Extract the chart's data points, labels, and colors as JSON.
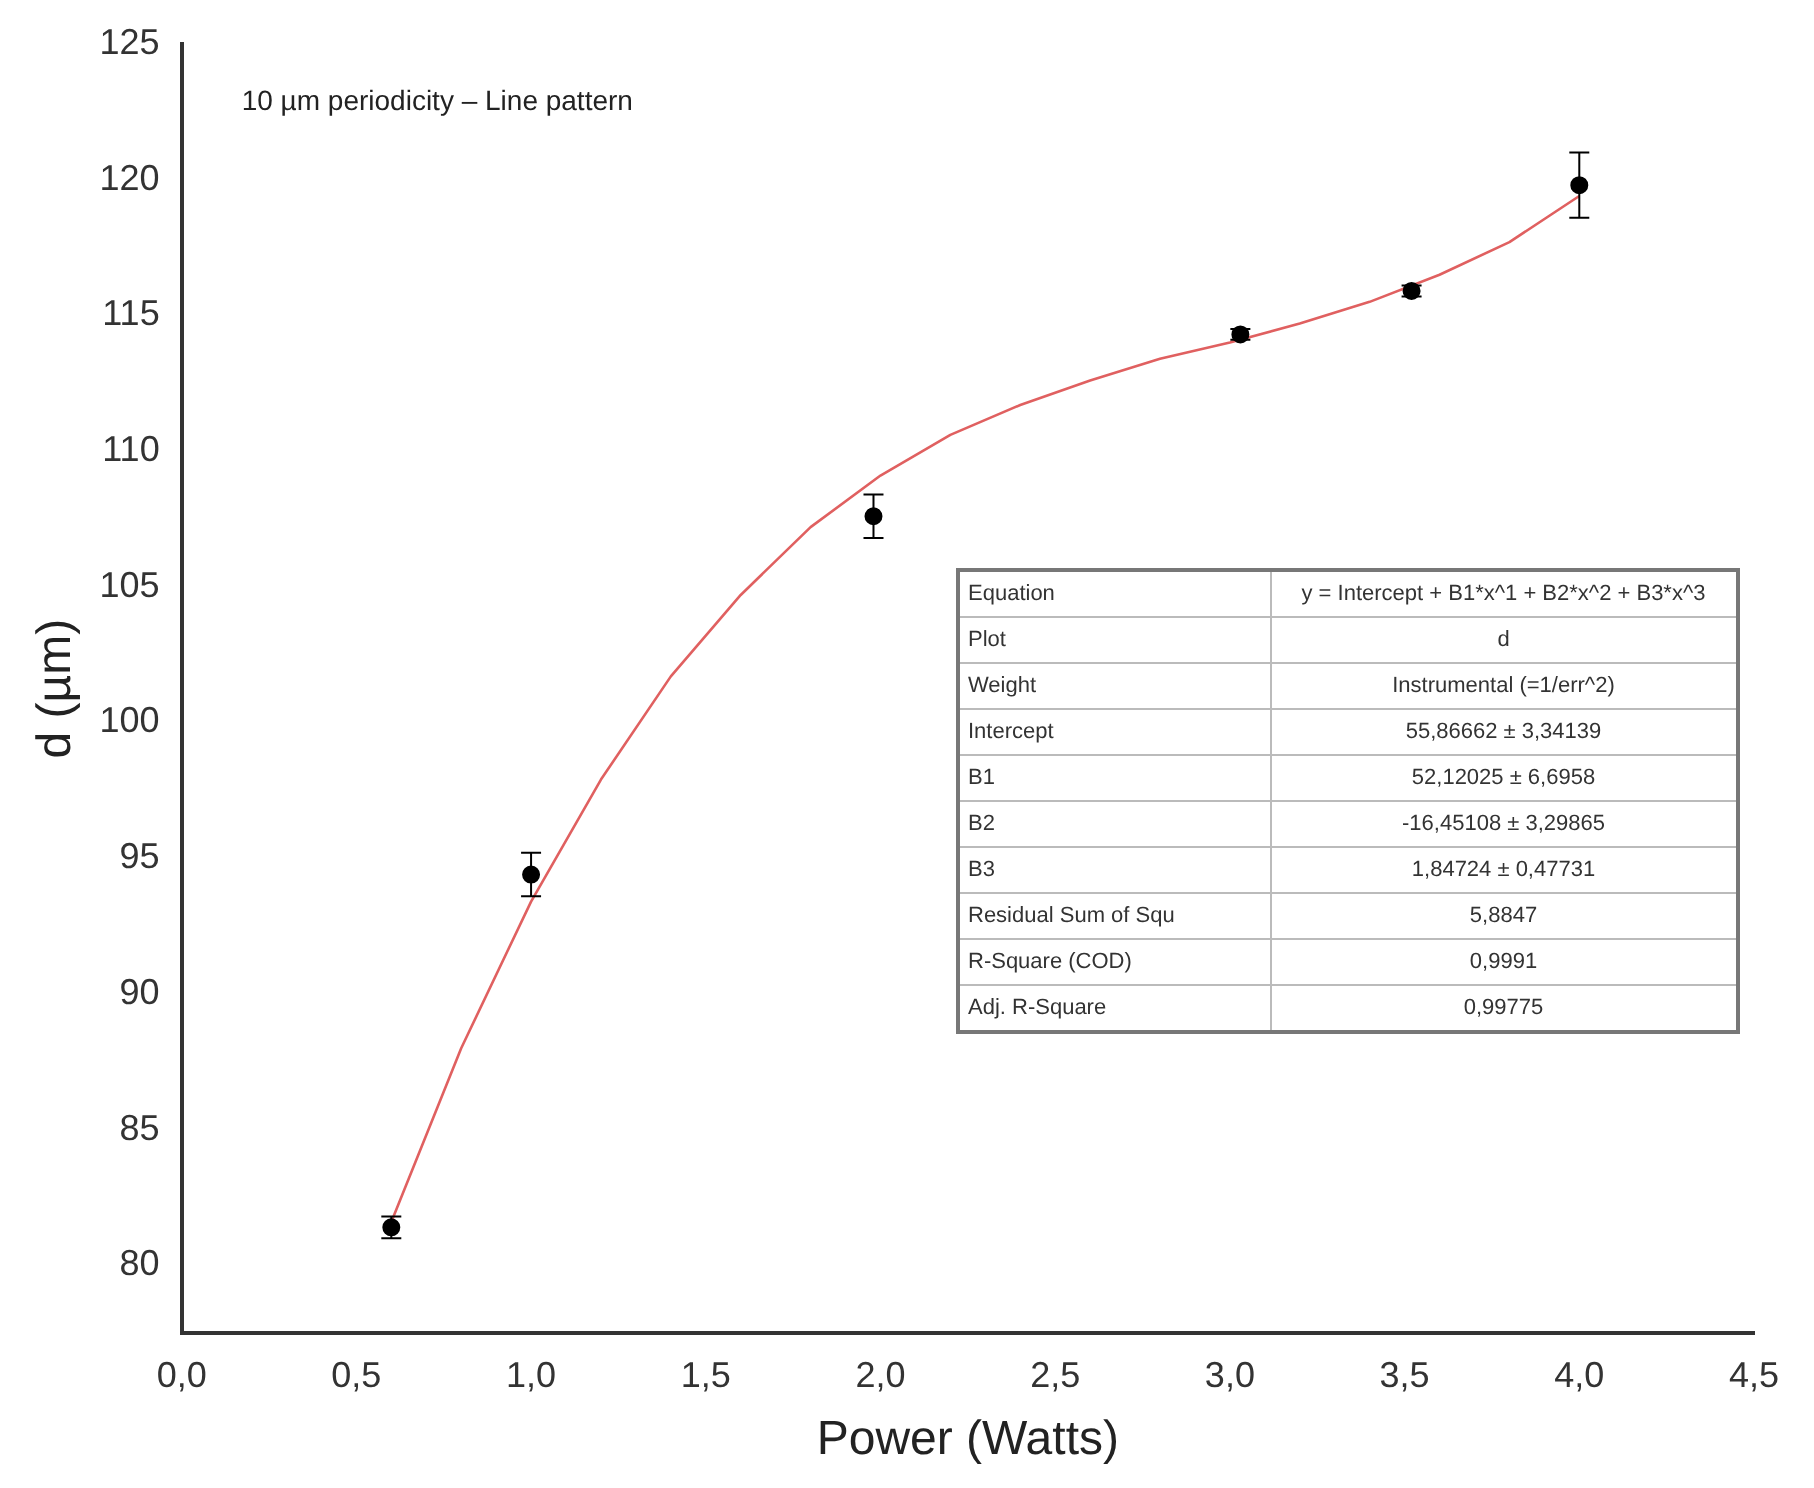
{
  "chart_data": {
    "type": "scatter",
    "title": "10 µm periodicity – Line pattern",
    "xlabel": "Power (Watts)",
    "ylabel": "d (µm)",
    "xlim": [
      0,
      4.5
    ],
    "xticks": [
      {
        "value": 0,
        "label": "0,0"
      },
      {
        "value": 0.5,
        "label": "0,5"
      },
      {
        "value": 1,
        "label": "1,0"
      },
      {
        "value": 1.5,
        "label": "1,5"
      },
      {
        "value": 2,
        "label": "2,0"
      },
      {
        "value": 2.5,
        "label": "2,5"
      },
      {
        "value": 3,
        "label": "3,0"
      },
      {
        "value": 3.5,
        "label": "3,5"
      },
      {
        "value": 4,
        "label": "4,0"
      },
      {
        "value": 4.5,
        "label": "4,5"
      }
    ],
    "ylim": [
      77.5,
      125
    ],
    "yticks": [
      80,
      85,
      90,
      95,
      100,
      105,
      110,
      115,
      120,
      125
    ],
    "grid": false,
    "legend": false,
    "series": [
      {
        "color": "#000000",
        "marker": "circle",
        "x": [
          0.6,
          1.0,
          1.98,
          3.03,
          3.52,
          4.0
        ],
        "values": [
          81.4,
          94.4,
          107.6,
          114.3,
          115.9,
          119.8
        ],
        "errors": [
          0.4,
          0.8,
          0.8,
          0.2,
          0.2,
          1.2
        ]
      },
      {
        "type": "line",
        "color": "#e06060",
        "marker": "none",
        "line_style": "solid",
        "x": [
          0.6,
          0.8,
          1.0,
          1.2,
          1.4,
          1.6,
          1.8,
          2.0,
          2.2,
          2.4,
          2.6,
          2.8,
          3.0,
          3.2,
          3.4,
          3.6,
          3.8,
          4.0
        ],
        "values": [
          81.6,
          88.0,
          93.4,
          97.9,
          101.7,
          104.7,
          107.2,
          109.1,
          110.6,
          111.7,
          112.6,
          113.4,
          114.0,
          114.7,
          115.5,
          116.5,
          117.7,
          119.4
        ]
      }
    ],
    "annotations": [
      "Equation",
      "y = Intercept + B1*x^1 + B2*x^2 + B3*x^3",
      "Plot",
      "d",
      "Weight",
      "Instrumental (=1/err^2)",
      "Intercept",
      "55,86662 ± 3,34139",
      "B1",
      "52,12025 ± 6,6958",
      "B2",
      "-16,45108 ± 3,29865",
      "B3",
      "1,84724 ± 0,47731",
      "Residual Sum of Squ",
      "5,8847",
      "R-Square (COD)",
      "0,9991",
      "Adj. R-Square",
      "0,99775"
    ]
  }
}
